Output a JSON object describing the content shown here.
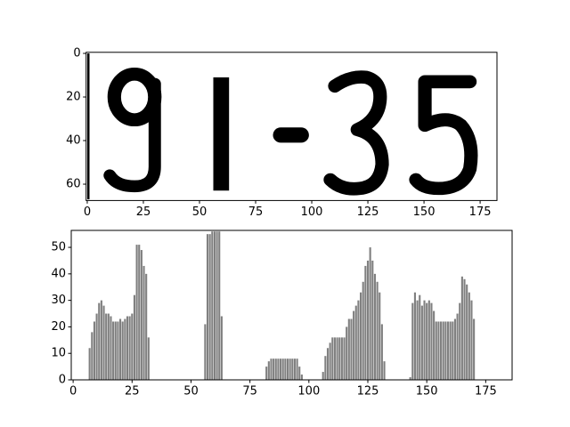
{
  "chart_data": [
    {
      "type": "image",
      "xlim": [
        -0.5,
        182.5
      ],
      "ylim": [
        67.5,
        -0.5
      ],
      "xticks": [
        0,
        25,
        50,
        75,
        100,
        125,
        150,
        175
      ],
      "yticks": [
        0,
        20,
        40,
        60
      ]
    },
    {
      "type": "bar",
      "color": "#808080",
      "xlim": [
        -0.8,
        186.2
      ],
      "ylim": [
        0,
        56.4
      ],
      "xticks": [
        0,
        25,
        50,
        75,
        100,
        125,
        150,
        175
      ],
      "yticks": [
        0,
        10,
        20,
        30,
        40,
        50
      ],
      "x": [
        7,
        8,
        9,
        10,
        11,
        12,
        13,
        14,
        15,
        16,
        17,
        18,
        19,
        20,
        21,
        22,
        23,
        24,
        25,
        26,
        27,
        28,
        29,
        30,
        31,
        32,
        56,
        57,
        58,
        59,
        60,
        61,
        62,
        63,
        82,
        83,
        84,
        85,
        86,
        87,
        88,
        89,
        90,
        91,
        92,
        93,
        94,
        95,
        96,
        97,
        106,
        107,
        108,
        109,
        110,
        111,
        112,
        113,
        114,
        115,
        116,
        117,
        118,
        119,
        120,
        121,
        122,
        123,
        124,
        125,
        126,
        127,
        128,
        129,
        130,
        131,
        132,
        143,
        144,
        145,
        146,
        147,
        148,
        149,
        150,
        151,
        152,
        153,
        154,
        155,
        156,
        157,
        158,
        159,
        160,
        161,
        162,
        163,
        164,
        165,
        166,
        167,
        168,
        169,
        170
      ],
      "values": [
        12,
        18,
        22,
        25,
        29,
        30,
        28,
        25,
        25,
        24,
        22,
        22,
        22,
        23,
        22,
        23,
        24,
        24,
        25,
        32,
        51,
        51,
        49,
        43,
        40,
        16,
        21,
        55,
        55,
        56,
        56,
        56,
        56,
        24,
        5,
        7,
        8,
        8,
        8,
        8,
        8,
        8,
        8,
        8,
        8,
        8,
        8,
        8,
        5,
        2,
        3,
        9,
        12,
        14,
        16,
        16,
        16,
        16,
        16,
        16,
        20,
        23,
        23,
        26,
        28,
        30,
        33,
        37,
        43,
        45,
        50,
        45,
        40,
        37,
        33,
        21,
        7,
        1,
        29,
        33,
        30,
        32,
        28,
        30,
        29,
        30,
        29,
        26,
        22,
        22,
        22,
        22,
        22,
        22,
        22,
        22,
        23,
        25,
        29,
        39,
        38,
        36,
        33,
        30,
        23
      ]
    }
  ]
}
